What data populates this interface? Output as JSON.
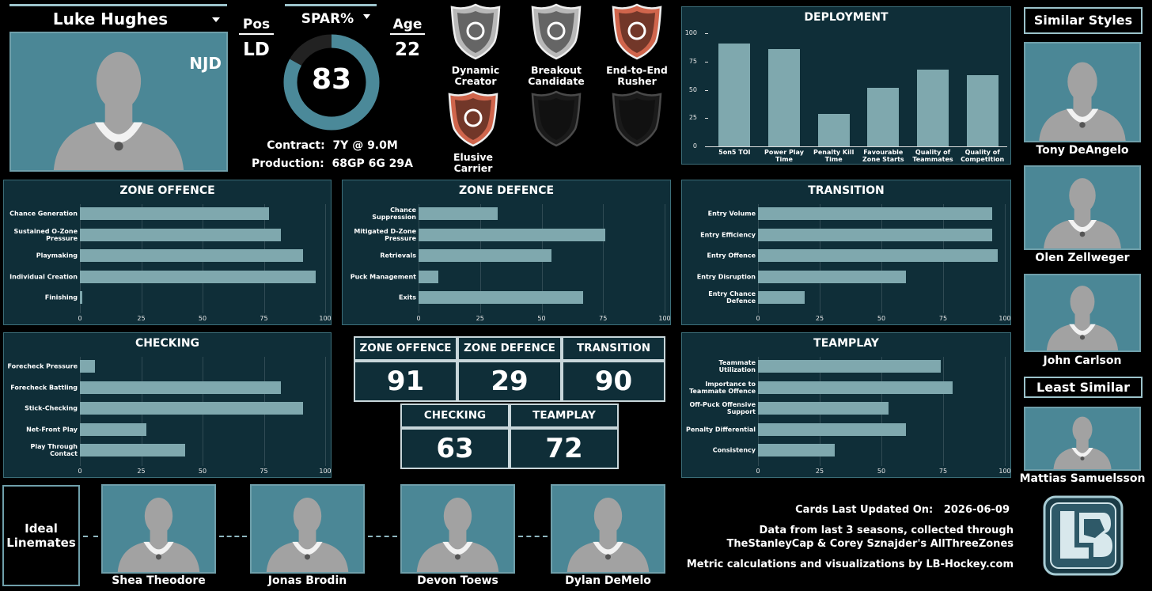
{
  "player": {
    "name": "Luke Hughes",
    "team": "NJD",
    "pos_label": "Pos",
    "pos": "LD",
    "spar_label": "SPAR%",
    "spar": 83,
    "spar_color": "#4b8999",
    "age_label": "Age",
    "age": 22,
    "contract_label": "Contract:",
    "contract": "7Y @ 9.0M",
    "production_label": "Production:",
    "production": "68GP 6G 29A"
  },
  "badges": [
    {
      "name": "Dynamic Creator",
      "color": "#b8b8b8"
    },
    {
      "name": "Breakout Candidate",
      "color": "#b8b8b8"
    },
    {
      "name": "End-to-End Rusher",
      "color": "#d0654c"
    },
    {
      "name": "Elusive Carrier",
      "color": "#d0654c"
    }
  ],
  "chart_data": [
    {
      "type": "bar",
      "orientation": "vertical",
      "title": "DEPLOYMENT",
      "categories": [
        "5on5 TOI",
        "Power Play Time",
        "Penalty Kill Time",
        "Favourable Zone Starts",
        "Quality of Teammates",
        "Quality of Competition"
      ],
      "values": [
        91,
        86,
        29,
        52,
        68,
        63
      ],
      "color": "#7fa8ae",
      "ylim": [
        0,
        100
      ],
      "yticks": [
        0,
        25,
        50,
        75,
        100
      ],
      "grid": false
    },
    {
      "type": "bar",
      "orientation": "horizontal",
      "title": "ZONE OFFENCE",
      "categories": [
        "Chance Generation",
        "Sustained O-Zone Pressure",
        "Playmaking",
        "Individual Creation",
        "Finishing"
      ],
      "values": [
        77,
        82,
        91,
        96,
        1
      ],
      "color": "#7fa8ae",
      "xlim": [
        0,
        100
      ],
      "xticks": [
        0,
        25,
        50,
        75,
        100
      ],
      "grid": true
    },
    {
      "type": "bar",
      "orientation": "horizontal",
      "title": "ZONE DEFENCE",
      "categories": [
        "Chance Suppression",
        "Mitigated D-Zone Pressure",
        "Retrievals",
        "Puck Management",
        "Exits"
      ],
      "values": [
        32,
        76,
        54,
        8,
        67
      ],
      "color": "#7fa8ae",
      "xlim": [
        0,
        100
      ],
      "xticks": [
        0,
        25,
        50,
        75,
        100
      ],
      "grid": true
    },
    {
      "type": "bar",
      "orientation": "horizontal",
      "title": "TRANSITION",
      "categories": [
        "Entry Volume",
        "Entry Efficiency",
        "Entry Offence",
        "Entry Disruption",
        "Entry Chance Defence"
      ],
      "values": [
        95,
        95,
        97,
        60,
        19
      ],
      "color": "#7fa8ae",
      "xlim": [
        0,
        100
      ],
      "xticks": [
        0,
        25,
        50,
        75,
        100
      ],
      "grid": true
    },
    {
      "type": "bar",
      "orientation": "horizontal",
      "title": "CHECKING",
      "categories": [
        "Forecheck Pressure",
        "Forecheck Battling",
        "Stick-Checking",
        "Net-Front Play",
        "Play Through Contact"
      ],
      "values": [
        6,
        82,
        91,
        27,
        43
      ],
      "color": "#7fa8ae",
      "xlim": [
        0,
        100
      ],
      "xticks": [
        0,
        25,
        50,
        75,
        100
      ],
      "grid": true
    },
    {
      "type": "bar",
      "orientation": "horizontal",
      "title": "TEAMPLAY",
      "categories": [
        "Teammate Utilization",
        "Importance to Teammate Offence",
        "Off-Puck Offensive Support",
        "Penalty Differential",
        "Consistency"
      ],
      "values": [
        74,
        79,
        53,
        60,
        31
      ],
      "color": "#7fa8ae",
      "xlim": [
        0,
        100
      ],
      "xticks": [
        0,
        25,
        50,
        75,
        100
      ],
      "grid": true
    }
  ],
  "scores": [
    {
      "label": "ZONE OFFENCE",
      "value": 91
    },
    {
      "label": "ZONE DEFENCE",
      "value": 29
    },
    {
      "label": "TRANSITION",
      "value": 90
    },
    {
      "label": "CHECKING",
      "value": 63
    },
    {
      "label": "TEAMPLAY",
      "value": 72
    }
  ],
  "similar": {
    "title": "Similar Styles",
    "players": [
      "Tony DeAngelo",
      "Olen Zellweger",
      "John Carlson"
    ],
    "least_title": "Least Similar",
    "least": "Mattias Samuelsson"
  },
  "linemates": {
    "title": "Ideal Linemates",
    "players": [
      "Shea Theodore",
      "Jonas Brodin",
      "Devon Toews",
      "Dylan DeMelo"
    ]
  },
  "footer": {
    "updated_label": "Cards Last Updated On:",
    "updated": "2026-06-09",
    "source": "Data from last 3 seasons, collected through TheStanleyCap & Corey Sznajder's AllThreeZones",
    "credit": "Metric calculations and visualizations by LB-Hockey.com"
  }
}
